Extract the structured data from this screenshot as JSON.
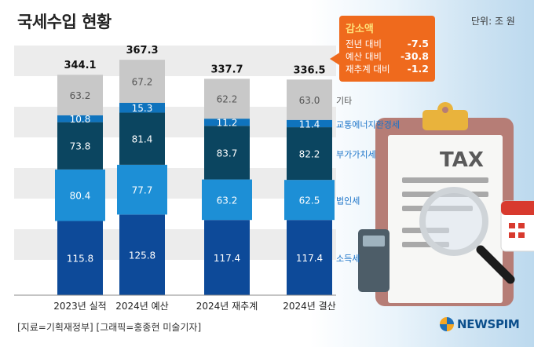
{
  "title": "국세수입 현황",
  "unit": "단위: 조 원",
  "source": "[지료=기획재정부] [그래픽=홍종현 미술기자]",
  "logo": "NEWSPIM",
  "callout": {
    "title": "감소액",
    "rows": [
      {
        "label": "전년 대비",
        "value": "-7.5"
      },
      {
        "label": "예산 대비",
        "value": "-30.8"
      },
      {
        "label": "재추계 대비",
        "value": "-1.2"
      }
    ]
  },
  "chart_data": {
    "type": "bar",
    "stacked": true,
    "categories": [
      "2023년 실적",
      "2024년 예산",
      "2024년 재추계",
      "2024년 결산"
    ],
    "totals": [
      "344.1",
      "367.3",
      "337.7",
      "336.5"
    ],
    "series": [
      {
        "name": "소득세",
        "values": [
          115.8,
          125.8,
          117.4,
          117.4
        ],
        "labels": [
          "115.8",
          "125.8",
          "117.4",
          "117.4"
        ],
        "color": "#0d4a99",
        "label_color": "#1a73c8"
      },
      {
        "name": "법인세",
        "values": [
          80.4,
          77.7,
          63.2,
          62.5
        ],
        "labels": [
          "80.4",
          "77.7",
          "63.2",
          "62.5"
        ],
        "color": "#1d8fd6",
        "label_color": "#1a73c8"
      },
      {
        "name": "부가가치세",
        "values": [
          73.8,
          81.4,
          83.7,
          82.2
        ],
        "labels": [
          "73.8",
          "81.4",
          "83.7",
          "82.2"
        ],
        "color": "#0b4560",
        "label_color": "#1a73c8"
      },
      {
        "name": "교통에너지환경세",
        "values": [
          10.8,
          15.3,
          11.2,
          11.4
        ],
        "labels": [
          "10.8",
          "15.3",
          "11.2",
          "11.4"
        ],
        "color": "#0f73bd",
        "label_color": "#1a73c8"
      },
      {
        "name": "기타",
        "values": [
          63.2,
          67.2,
          62.2,
          63.0
        ],
        "labels": [
          "63.2",
          "67.2",
          "62.2",
          "63.0"
        ],
        "color": "#c8c8c8",
        "label_color": "#555555"
      }
    ],
    "title": "국세수입 현황",
    "ylabel": "조 원",
    "ylim": [
      0,
      370
    ]
  }
}
